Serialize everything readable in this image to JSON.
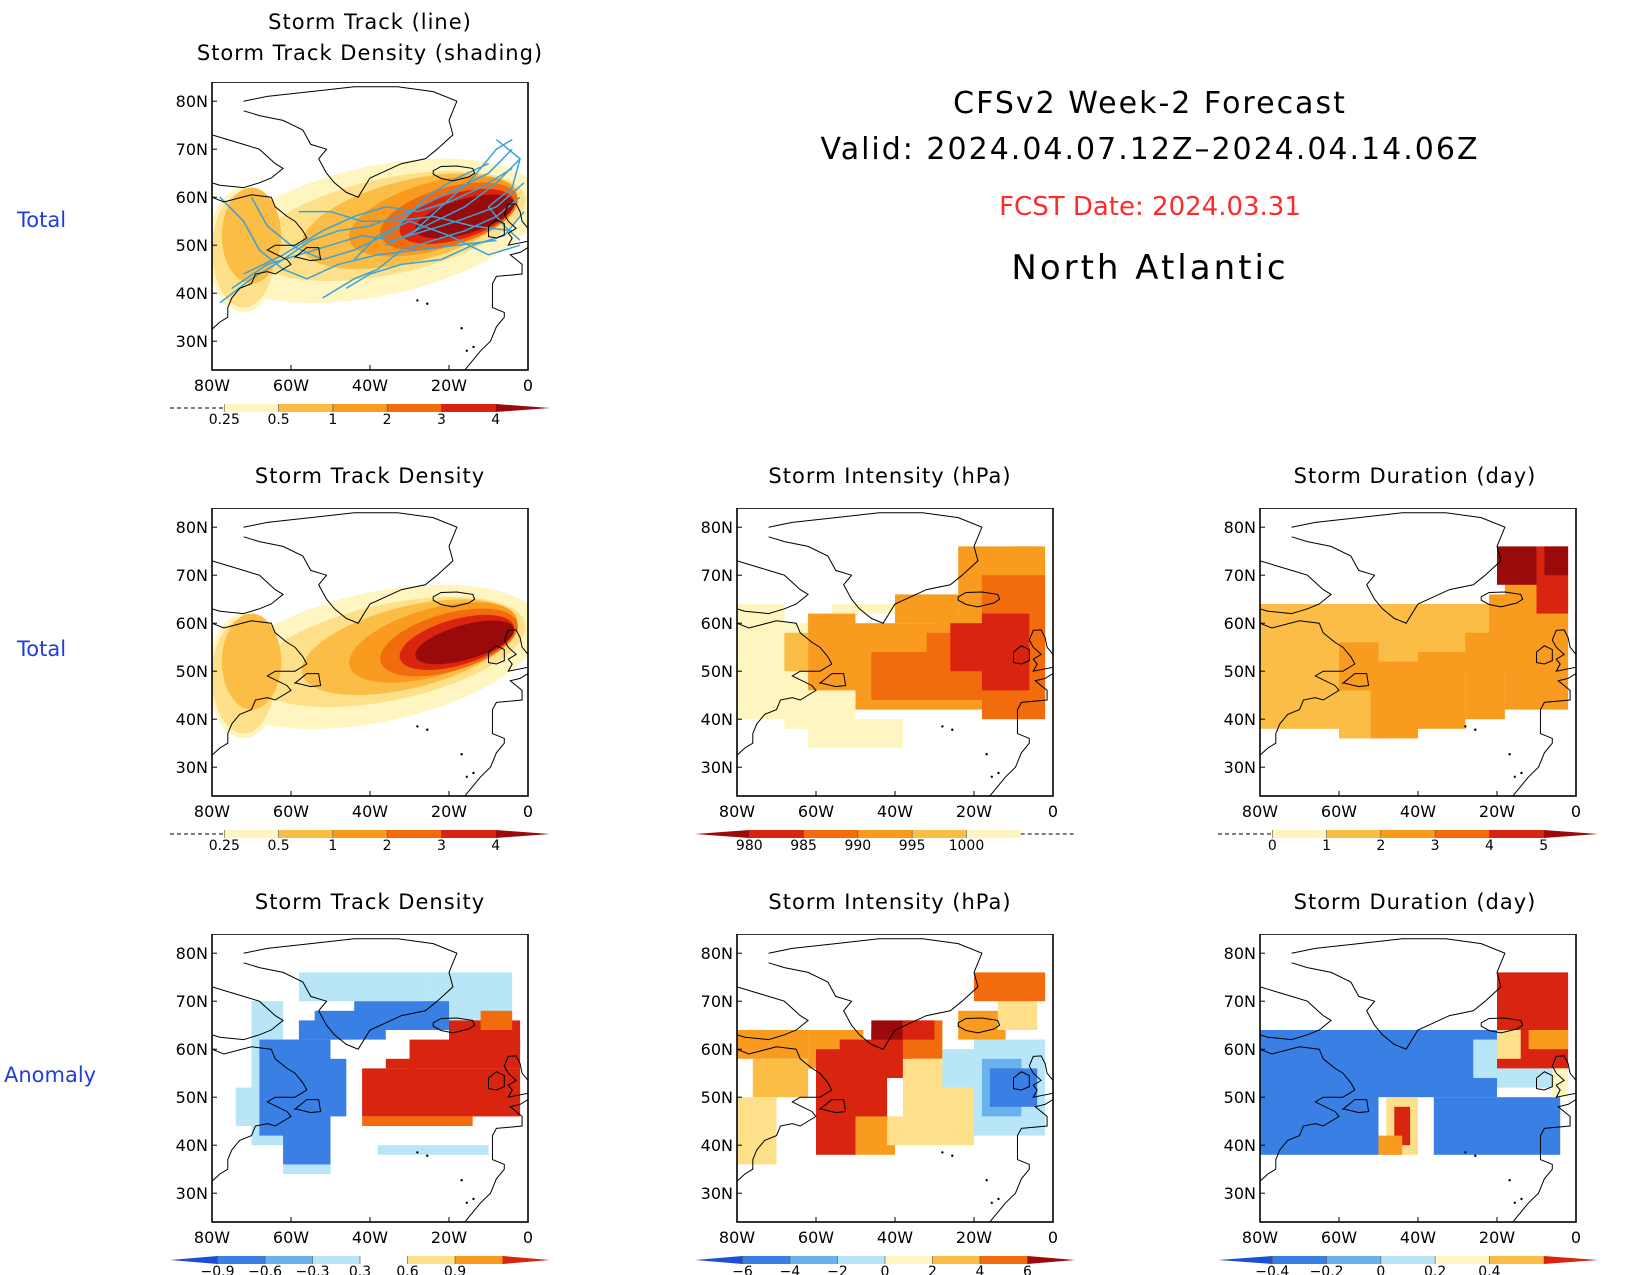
{
  "header": {
    "line1": "CFSv2 Week-2 Forecast",
    "line2": "Valid: 2024.04.07.12Z–2024.04.14.06Z",
    "fcst": "FCST Date: 2024.03.31",
    "region": "North Atlantic",
    "fcst_color": "#ff2a2a"
  },
  "row_labels": [
    "Total",
    "Total",
    "Anomaly"
  ],
  "axes": {
    "lat_ticks": [
      "80N",
      "70N",
      "60N",
      "50N",
      "40N",
      "30N"
    ],
    "lon_ticks": [
      "80W",
      "60W",
      "40W",
      "20W",
      "0"
    ]
  },
  "panels": {
    "track_line": {
      "title1": "Storm Track (line)",
      "title2": "Storm Track Density (shading)",
      "colorbar": [
        "0.25",
        "0.5",
        "1",
        "2",
        "3",
        "4"
      ]
    },
    "density_total": {
      "title": "Storm Track Density",
      "colorbar": [
        "0.25",
        "0.5",
        "1",
        "2",
        "3",
        "4"
      ]
    },
    "intensity_total": {
      "title": "Storm Intensity (hPa)",
      "colorbar": [
        "980",
        "985",
        "990",
        "995",
        "1000"
      ]
    },
    "duration_total": {
      "title": "Storm Duration (day)",
      "colorbar": [
        "0",
        "1",
        "2",
        "3",
        "4",
        "5"
      ]
    },
    "density_anom": {
      "title": "Storm Track Density",
      "colorbar": [
        "−0.9",
        "−0.6",
        "−0.3",
        "0.3",
        "0.6",
        "0.9"
      ]
    },
    "intensity_anom": {
      "title": "Storm Intensity (hPa)",
      "colorbar": [
        "−6",
        "−4",
        "−2",
        "0",
        "2",
        "4",
        "6"
      ]
    },
    "duration_anom": {
      "title": "Storm Duration (day)",
      "colorbar": [
        "−0.4",
        "−0.2",
        "0",
        "0.2",
        "0.4"
      ]
    }
  },
  "colors": {
    "warm": [
      "#fff5c0",
      "#fde089",
      "#fbbd45",
      "#f89b1f",
      "#f26b0c",
      "#d92410",
      "#9b0a0a"
    ],
    "cool": [
      "#1c4fd6",
      "#3a7fe4",
      "#6ab2ee",
      "#b8e6f6"
    ],
    "track_line": "#3aa3d8"
  }
}
